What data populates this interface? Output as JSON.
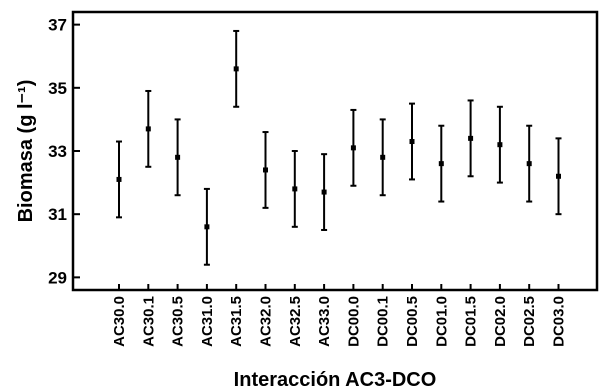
{
  "chart_data": {
    "type": "scatter",
    "subtype": "means-with-error-bars",
    "title": "",
    "xlabel": "Interacción AC3-DCO",
    "ylabel": "Biomasa (g l⁻¹)",
    "ylim": [
      28.6,
      37.4
    ],
    "yticks": [
      29,
      31,
      33,
      35,
      37
    ],
    "grid": false,
    "legend": "none",
    "categories": [
      "AC30.0",
      "AC30.1",
      "AC30.5",
      "AC31.0",
      "AC31.5",
      "AC32.0",
      "AC32.5",
      "AC33.0",
      "DC00.0",
      "DC00.1",
      "DC00.5",
      "DC01.0",
      "DC01.5",
      "DC02.0",
      "DC02.5",
      "DC03.0"
    ],
    "series": [
      {
        "mean": [
          32.1,
          33.7,
          32.8,
          30.6,
          35.6,
          32.4,
          31.8,
          31.7,
          33.1,
          32.8,
          33.3,
          32.6,
          33.4,
          33.2,
          32.6,
          32.2
        ],
        "upper": [
          33.3,
          34.9,
          34.0,
          31.8,
          36.8,
          33.6,
          33.0,
          32.9,
          34.3,
          34.0,
          34.5,
          33.8,
          34.6,
          34.4,
          33.8,
          33.4
        ],
        "lower": [
          30.9,
          32.5,
          31.6,
          29.4,
          34.4,
          31.2,
          30.6,
          30.5,
          31.9,
          31.6,
          32.1,
          31.4,
          32.2,
          32.0,
          31.4,
          31.0
        ]
      }
    ],
    "color": "#000000"
  }
}
